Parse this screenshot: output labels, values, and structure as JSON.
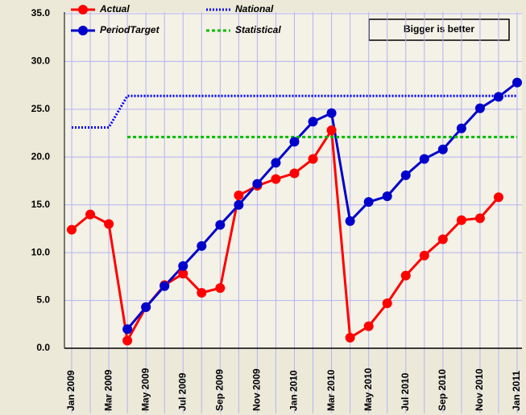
{
  "chart_data": {
    "type": "line",
    "annotation": "Bigger is better",
    "categories": [
      "Jan 2009",
      null,
      "Mar 2009",
      null,
      "May 2009",
      null,
      "Jul 2009",
      null,
      "Sep 2009",
      null,
      "Nov 2009",
      null,
      "Jan 2010",
      null,
      "Mar 2010",
      null,
      "May 2010",
      null,
      "Jul 2010",
      null,
      "Sep 2010",
      null,
      "Nov 2010",
      null,
      "Jan 2011"
    ],
    "ylim": [
      0,
      35
    ],
    "yticks": [
      {
        "value": 0,
        "label": "0.0"
      },
      {
        "value": 5,
        "label": "5.0"
      },
      {
        "value": 10,
        "label": "10.0"
      },
      {
        "value": 15,
        "label": "15.0"
      },
      {
        "value": 20,
        "label": "20.0"
      },
      {
        "value": 25,
        "label": "25.0"
      },
      {
        "value": 30,
        "label": "30.0"
      },
      {
        "value": 35,
        "label": "35.0"
      }
    ],
    "grid": true,
    "legend": "upper left",
    "series": [
      {
        "name": "Actual",
        "color": "#ff0000",
        "style": "solid",
        "markers": true,
        "values": [
          12.4,
          14.0,
          13.0,
          0.8,
          4.3,
          6.6,
          7.8,
          5.8,
          6.3,
          16.0,
          17.0,
          17.7,
          18.3,
          19.8,
          22.8,
          1.1,
          2.3,
          4.7,
          7.6,
          9.7,
          11.4,
          13.4,
          13.6,
          15.8,
          null
        ]
      },
      {
        "name": "PeriodTarget",
        "color": "#0000cc",
        "style": "solid",
        "markers": true,
        "values": [
          null,
          null,
          null,
          2.0,
          4.3,
          6.5,
          8.6,
          10.7,
          12.9,
          15.0,
          17.2,
          19.4,
          21.6,
          23.7,
          24.6,
          13.3,
          15.3,
          15.9,
          18.1,
          19.8,
          20.8,
          23.0,
          25.1,
          26.3,
          27.8
        ]
      },
      {
        "name": "National",
        "color": "#0000ff",
        "style": "dotted",
        "markers": false,
        "values": [
          23.1,
          23.1,
          23.1,
          26.4,
          26.4,
          26.4,
          26.4,
          26.4,
          26.4,
          26.4,
          26.4,
          26.4,
          26.4,
          26.4,
          26.4,
          26.4,
          26.4,
          26.4,
          26.4,
          26.4,
          26.4,
          26.4,
          26.4,
          26.4,
          26.4
        ]
      },
      {
        "name": "Statistical",
        "color": "#00bb00",
        "style": "dashed",
        "markers": false,
        "values": [
          null,
          null,
          null,
          22.1,
          22.1,
          22.1,
          22.1,
          22.1,
          22.1,
          22.1,
          22.1,
          22.1,
          22.1,
          22.1,
          22.1,
          22.1,
          22.1,
          22.1,
          22.1,
          22.1,
          22.1,
          22.1,
          22.1,
          22.1,
          22.1
        ]
      }
    ]
  }
}
